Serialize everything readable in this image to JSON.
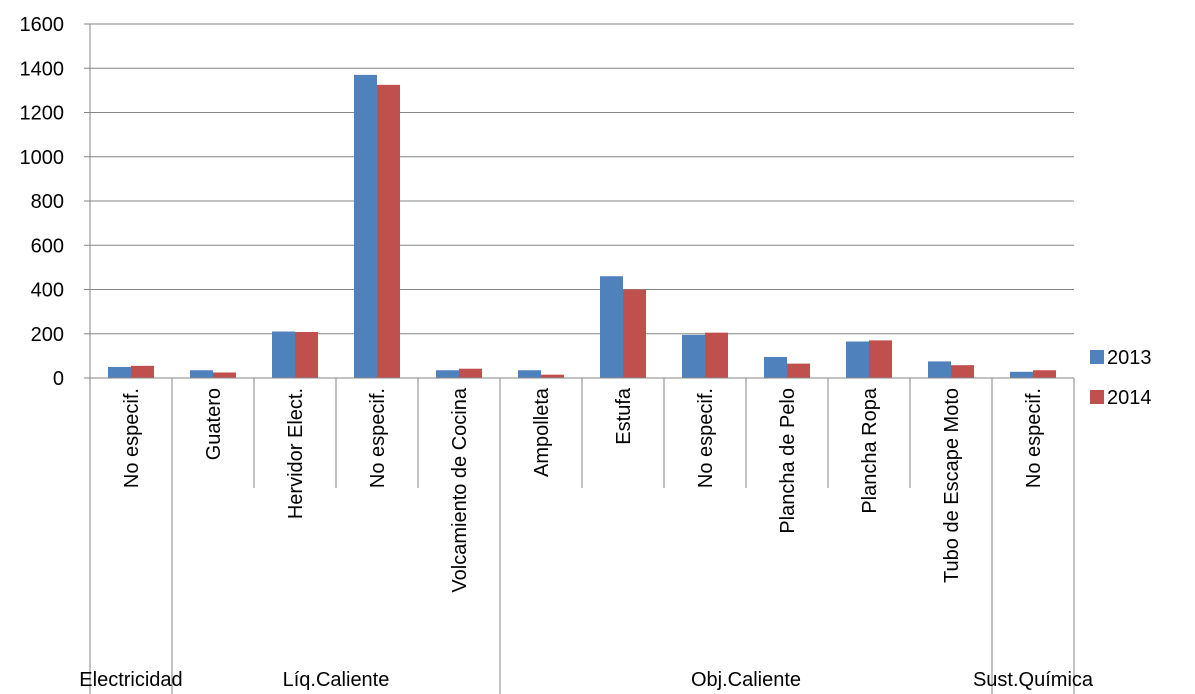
{
  "chart_data": {
    "type": "bar",
    "title": "",
    "xlabel": "",
    "ylabel": "",
    "ylim": [
      0,
      1600
    ],
    "yticks": [
      0,
      200,
      400,
      600,
      800,
      1000,
      1200,
      1400,
      1600
    ],
    "grid": true,
    "legend_position": "right",
    "groups": [
      {
        "label": "Electricidad",
        "categories": [
          "No especif."
        ]
      },
      {
        "label": "Líq.Caliente",
        "categories": [
          "Guatero",
          "Hervidor Elect.",
          "No especif.",
          "Volcamiento de Cocina"
        ]
      },
      {
        "label": "Obj.Caliente",
        "categories": [
          "Ampolleta",
          "Estufa",
          "No especif.",
          "Plancha de Pelo",
          "Plancha Ropa",
          "Tubo de Escape Moto"
        ]
      },
      {
        "label": "Sust.Química",
        "categories": [
          "No especif."
        ]
      }
    ],
    "categories": [
      "No especif.",
      "Guatero",
      "Hervidor Elect.",
      "No especif.",
      "Volcamiento de Cocina",
      "Ampolleta",
      "Estufa",
      "No especif.",
      "Plancha de Pelo",
      "Plancha Ropa",
      "Tubo de Escape Moto",
      "No especif."
    ],
    "series": [
      {
        "name": "2013",
        "color": "#4f81bd",
        "values": [
          50,
          35,
          210,
          1370,
          35,
          35,
          460,
          195,
          95,
          165,
          75,
          28
        ]
      },
      {
        "name": "2014",
        "color": "#c0504d",
        "values": [
          55,
          25,
          208,
          1325,
          42,
          15,
          400,
          205,
          65,
          170,
          58,
          35
        ]
      }
    ]
  }
}
